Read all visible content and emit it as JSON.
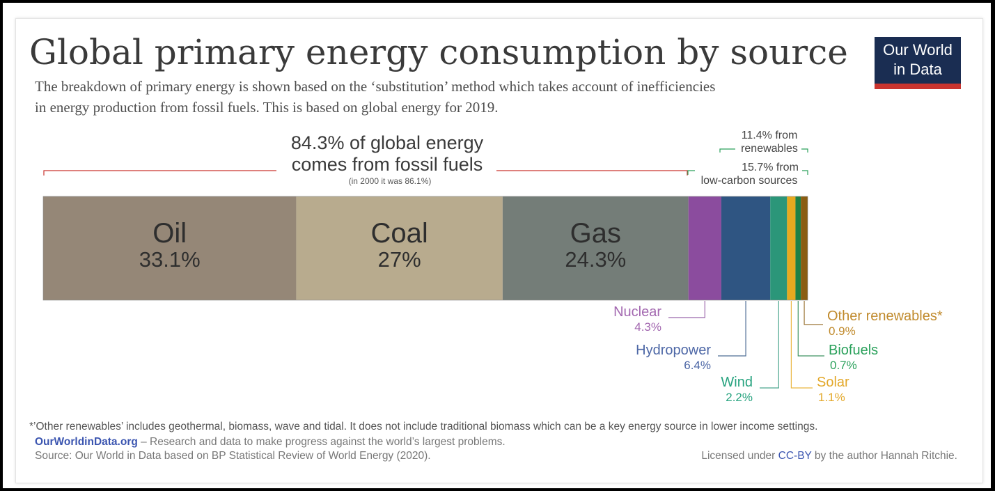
{
  "header": {
    "title": "Global primary energy consumption by source",
    "subtitle_line1": "The breakdown of primary energy is shown based on the ‘substitution’ method which takes account of inefficiencies",
    "subtitle_line2": "in energy production from fossil fuels. This is based on global energy for 2019."
  },
  "logo": {
    "line1": "Our World",
    "line2": "in Data",
    "colors": {
      "background": "#1a2d52",
      "accent": "#c9342f"
    }
  },
  "annotations": {
    "fossil_line1": "84.3% of global energy",
    "fossil_line2": "comes from fossil fuels",
    "fossil_note": "(in 2000 it was 86.1%)",
    "renewables_line1": "11.4% from",
    "renewables_line2": "renewables",
    "lowcarbon_line1": "15.7% from",
    "lowcarbon_line2": "low-carbon sources"
  },
  "chart_data": {
    "type": "bar",
    "orientation": "horizontal-stacked",
    "categories": [
      "Oil",
      "Coal",
      "Gas",
      "Nuclear",
      "Hydropower",
      "Wind",
      "Solar",
      "Biofuels",
      "Other renewables*"
    ],
    "values": [
      33.1,
      27,
      24.3,
      4.3,
      6.4,
      2.2,
      1.1,
      0.7,
      0.9
    ],
    "value_labels": [
      "33.1%",
      "27%",
      "24.3%",
      "4.3%",
      "6.4%",
      "2.2%",
      "1.1%",
      "0.7%",
      "0.9%"
    ],
    "colors": [
      "#958777",
      "#b8ab8e",
      "#747d78",
      "#8b4c9e",
      "#2f5582",
      "#2b9679",
      "#e6a91f",
      "#1d8046",
      "#8a5d12"
    ],
    "label_colors": [
      "#333333",
      "#333333",
      "#333333",
      "#a368b0",
      "#4d67a6",
      "#27a37f",
      "#e3a82a",
      "#29a05a",
      "#c08a2c"
    ],
    "unit": "%"
  },
  "footer": {
    "note": "*’Other renewables’ includes geothermal, biomass, wave and tidal. It does not include traditional biomass which can be a key energy source in lower income settings.",
    "owid_link": "OurWorldinData.org",
    "owid_tagline": " – Research and data to make progress against the world’s largest problems.",
    "source": "Source: Our World in Data based on BP Statistical Review of World Energy (2020).",
    "license_prefix": "Licensed under ",
    "license_link": "CC-BY",
    "license_suffix": " by the author Hannah Ritchie."
  }
}
